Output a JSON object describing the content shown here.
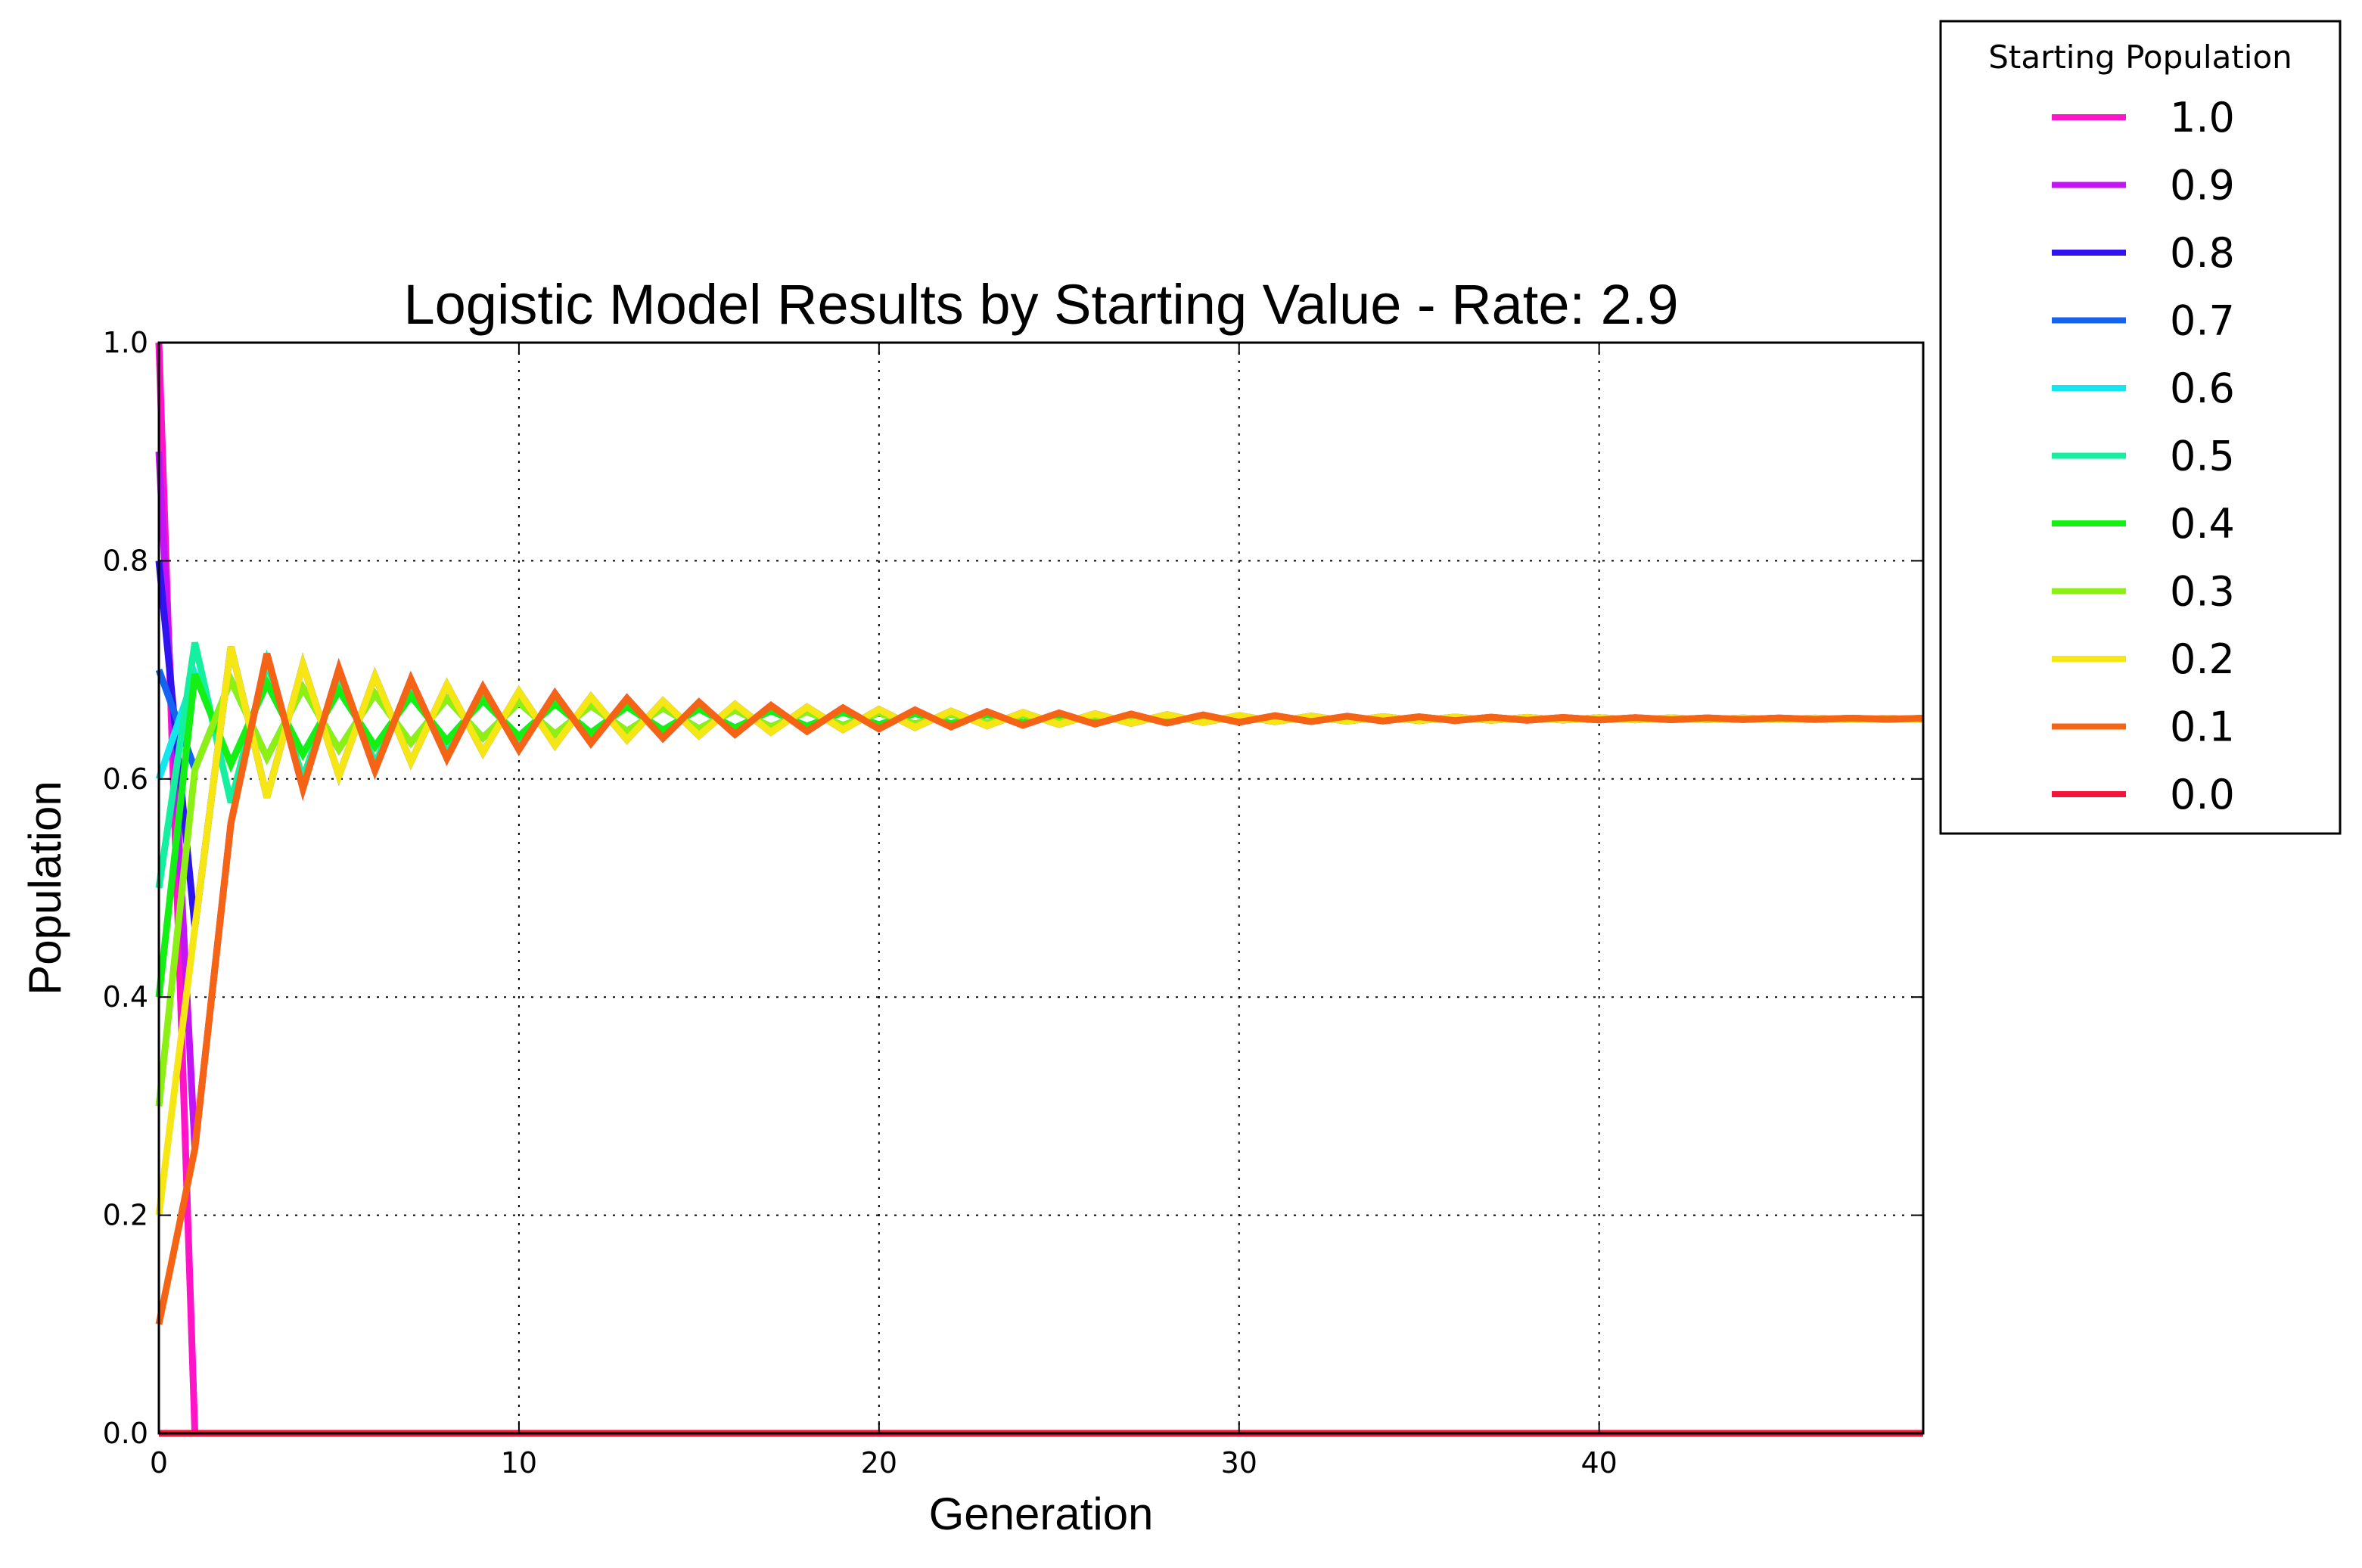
{
  "chart_data": {
    "type": "line",
    "title": "Logistic Model Results by Starting Value - Rate: 2.9",
    "xlabel": "Generation",
    "ylabel": "Population",
    "rate": 2.9,
    "generations": 50,
    "xlim": [
      0,
      49
    ],
    "ylim": [
      0.0,
      1.0
    ],
    "xticks": [
      0,
      10,
      20,
      30,
      40
    ],
    "xtick_labels": [
      "0",
      "10",
      "20",
      "30",
      "40"
    ],
    "yticks": [
      0.0,
      0.2,
      0.4,
      0.6,
      0.8,
      1.0
    ],
    "ytick_labels": [
      "0.0",
      "0.2",
      "0.4",
      "0.6",
      "0.8",
      "1.0"
    ],
    "grid": true,
    "legend": {
      "title": "Starting Population",
      "position": "outside-top-right"
    },
    "series": [
      {
        "name": "1.0",
        "start": 1.0,
        "color": "#ff14c8"
      },
      {
        "name": "0.9",
        "start": 0.9,
        "color": "#c314f5"
      },
      {
        "name": "0.8",
        "start": 0.8,
        "color": "#3014f0"
      },
      {
        "name": "0.7",
        "start": 0.7,
        "color": "#1464f0"
      },
      {
        "name": "0.6",
        "start": 0.6,
        "color": "#14e6f0"
      },
      {
        "name": "0.5",
        "start": 0.5,
        "color": "#14f0a0"
      },
      {
        "name": "0.4",
        "start": 0.4,
        "color": "#14f014"
      },
      {
        "name": "0.3",
        "start": 0.3,
        "color": "#8cf014"
      },
      {
        "name": "0.2",
        "start": 0.2,
        "color": "#f5e614"
      },
      {
        "name": "0.1",
        "start": 0.1,
        "color": "#f56414"
      },
      {
        "name": "0.0",
        "start": 0.0,
        "color": "#f5143c"
      }
    ]
  }
}
